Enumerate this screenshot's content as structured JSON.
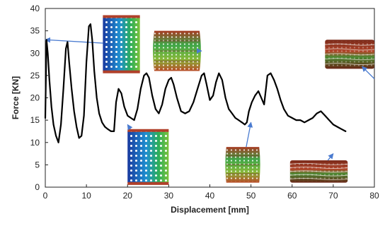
{
  "chart_data": {
    "type": "line",
    "title": "",
    "xlabel": "Displacement [mm]",
    "ylabel": "Force [KN]",
    "xlim": [
      0,
      80
    ],
    "ylim": [
      0,
      40
    ],
    "xticks": [
      0,
      10,
      20,
      30,
      40,
      50,
      60,
      70,
      80
    ],
    "yticks": [
      0,
      5,
      10,
      15,
      20,
      25,
      30,
      35,
      40
    ],
    "grid": false,
    "legend": "none",
    "line_color": "#000000",
    "arrow_color": "#4a7bd0",
    "series": [
      {
        "x": [
          0,
          0.3,
          0.6,
          1.0,
          1.5,
          2.0,
          2.6,
          3.2,
          3.8,
          4.4,
          5.0,
          5.4,
          5.8,
          6.4,
          7.0,
          7.6,
          8.2,
          8.8,
          9.4,
          10.0,
          10.6,
          11.0,
          11.4,
          11.9,
          12.5,
          13.1,
          13.8,
          14.5,
          15.2,
          16.0,
          16.7,
          17.2,
          17.8,
          18.5,
          19.2,
          20.0,
          20.8,
          21.6,
          22.4,
          23.2,
          24.0,
          24.6,
          25.2,
          26.0,
          26.8,
          27.6,
          28.4,
          29.2,
          30.0,
          30.6,
          31.2,
          32.0,
          33.0,
          34.0,
          35.0,
          36.0,
          37.0,
          38.0,
          38.6,
          39.2,
          40.0,
          40.8,
          41.5,
          42.2,
          43.0,
          43.8,
          44.6,
          45.4,
          46.2,
          47.0,
          47.8,
          48.5,
          49.0,
          49.5,
          50.2,
          51.0,
          51.8,
          52.5,
          53.2,
          54.0,
          54.8,
          55.6,
          56.4,
          57.2,
          58.0,
          59.0,
          60.0,
          61.0,
          62.0,
          63.0,
          64.0,
          65.0,
          66.0,
          67.0,
          68.0,
          69.0,
          70.0,
          71.0,
          72.0,
          73.0
        ],
        "y": [
          15.5,
          33.0,
          30.0,
          24.0,
          18.0,
          14.0,
          11.5,
          10.0,
          14.0,
          22.0,
          31.0,
          32.5,
          28.0,
          22.0,
          17.0,
          13.5,
          11.0,
          11.5,
          16.0,
          28.0,
          36.0,
          36.5,
          33.0,
          26.0,
          20.0,
          16.5,
          14.5,
          13.5,
          13.0,
          12.5,
          12.5,
          19.0,
          22.0,
          21.0,
          18.0,
          16.0,
          15.5,
          15.0,
          17.5,
          22.0,
          25.0,
          25.5,
          24.5,
          20.5,
          17.5,
          16.5,
          18.5,
          22.0,
          24.0,
          24.5,
          23.0,
          20.0,
          17.0,
          16.5,
          17.0,
          19.0,
          22.0,
          25.0,
          25.5,
          23.0,
          19.5,
          20.5,
          23.5,
          25.5,
          24.0,
          20.0,
          17.5,
          16.5,
          15.5,
          15.0,
          14.5,
          14.0,
          14.5,
          17.0,
          19.0,
          20.5,
          21.5,
          20.0,
          18.5,
          25.0,
          25.5,
          24.0,
          22.0,
          19.5,
          17.5,
          16.0,
          15.5,
          15.0,
          15.0,
          14.5,
          15.0,
          15.5,
          16.5,
          17.0,
          16.0,
          15.0,
          14.0,
          13.5,
          13.0,
          12.5
        ]
      }
    ],
    "insets": [
      {
        "kind": "tube-intact",
        "at": [
          0,
          33
        ],
        "x": [
          14,
          23
        ],
        "y": [
          25.5,
          38.5
        ]
      },
      {
        "kind": "tube-intact",
        "at": [
          20,
          14
        ],
        "x": [
          20,
          30
        ],
        "y": [
          0.5,
          13
        ]
      },
      {
        "kind": "tube-buckled",
        "at": [
          38,
          30.5
        ],
        "x": [
          26.5,
          37.5
        ],
        "y": [
          26,
          35
        ]
      },
      {
        "kind": "tube-folded",
        "at": [
          50,
          14.5
        ],
        "x": [
          44,
          52
        ],
        "y": [
          1,
          9
        ]
      },
      {
        "kind": "stack-crushed",
        "at": [
          70,
          7.5
        ],
        "x": [
          59.5,
          73.5
        ],
        "y": [
          1,
          6
        ]
      },
      {
        "kind": "stack-crushed",
        "at": [
          77,
          27
        ],
        "x": [
          68,
          80
        ],
        "y": [
          26.5,
          33
        ]
      }
    ]
  }
}
